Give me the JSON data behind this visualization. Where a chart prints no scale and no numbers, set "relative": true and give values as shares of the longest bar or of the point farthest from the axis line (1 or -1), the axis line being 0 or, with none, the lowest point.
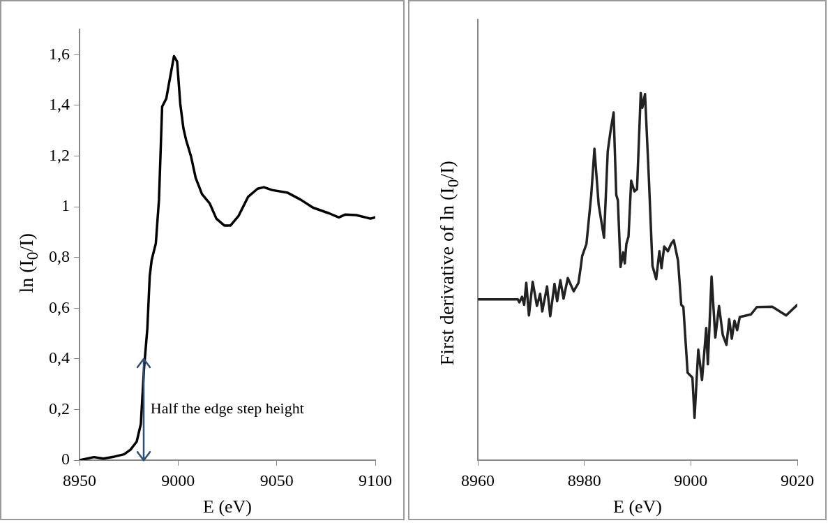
{
  "chart_data": [
    {
      "type": "line",
      "xlabel": "E (eV)",
      "ylabel": "ln (I$_{0}$/I)",
      "xlim": [
        8950,
        9100
      ],
      "xticks": [
        8950,
        9000,
        9050,
        9100
      ],
      "ylim": [
        0,
        1.7
      ],
      "yticks": [
        0,
        {
          "value": 0.2,
          "label": "0,2"
        },
        {
          "value": 0.4,
          "label": "0,4"
        },
        {
          "value": 0.6,
          "label": "0,6"
        },
        {
          "value": 0.8,
          "label": "0,8"
        },
        1,
        {
          "value": 1.2,
          "label": "1,2"
        },
        {
          "value": 1.4,
          "label": "1,4"
        },
        {
          "value": 1.6,
          "label": "1,6"
        }
      ],
      "annotations": [
        {
          "text": "Half the edge step height",
          "x": 8982.5,
          "y": 0.4
        }
      ],
      "series": [
        {
          "color": "#000000",
          "x": [
            8950,
            8957.3,
            8962.1,
            8967.7,
            8972.6,
            8975.8,
            8979,
            8981.1,
            8982.7,
            8984.4,
            8985.6,
            8986.6,
            8988.7,
            8990.3,
            8991.9,
            8994,
            8996,
            8997.9,
            8999.5,
            9001.1,
            9002.7,
            9004,
            9006.5,
            9008.9,
            9012.1,
            9016.1,
            9019.4,
            9023.4,
            9026.6,
            9030.6,
            9035.5,
            9040.3,
            9043.5,
            9047.6,
            9055.6,
            9062.1,
            9068.5,
            9076.6,
            9081.5,
            9084.7,
            9090.3,
            9097.6,
            9100
          ],
          "values": [
            0,
            0.012,
            0.006,
            0.014,
            0.023,
            0.041,
            0.073,
            0.143,
            0.36,
            0.52,
            0.726,
            0.79,
            0.855,
            1.028,
            1.395,
            1.427,
            1.513,
            1.594,
            1.573,
            1.406,
            1.309,
            1.265,
            1.2,
            1.114,
            1.05,
            1.012,
            0.953,
            0.926,
            0.926,
            0.963,
            1.039,
            1.071,
            1.077,
            1.066,
            1.055,
            1.028,
            0.996,
            0.974,
            0.958,
            0.969,
            0.967,
            0.953,
            0.958
          ]
        }
      ]
    },
    {
      "type": "line",
      "xlabel": "E (eV)",
      "ylabel": "First derivative of ln (I$_{0}$/I)",
      "relative": true,
      "xlim": [
        8960,
        9020
      ],
      "xticks": [
        8960,
        8980,
        9000,
        9020
      ],
      "series": [
        {
          "color": "#222222",
          "x": [
            8960.1,
            8967.5,
            8967.8,
            8968.3,
            8968.7,
            8969.1,
            8969.6,
            8970.3,
            8971.1,
            8971.7,
            8972.1,
            8973,
            8973.6,
            8974.4,
            8974.9,
            8975.5,
            8976.1,
            8976.9,
            8978,
            8978.9,
            8979.3,
            8979.6,
            8980.4,
            8981.3,
            8981.9,
            8982.7,
            8983.7,
            8984.4,
            8984.9,
            8985.5,
            8986,
            8986.3,
            8986.8,
            8987.3,
            8987.6,
            8987.9,
            8988.3,
            8988.8,
            8989.4,
            8989.9,
            8990.6,
            8990.9,
            8991.4,
            8992.1,
            8992.8,
            8993.5,
            8994.1,
            8994.5,
            8995,
            8995.7,
            8996.3,
            8996.8,
            8997.6,
            8998.2,
            8998.6,
            8999.4,
            9000.3,
            9000.7,
            9001.4,
            9002.1,
            9002.9,
            9003.2,
            9003.9,
            9004.6,
            9005.3,
            9006,
            9006.7,
            9007.2,
            9007.7,
            9008.2,
            9008.7,
            9009.2,
            9011.3,
            9012.4,
            9015.3,
            9017.9,
            9020
          ],
          "values": [
            0.438,
            0.438,
            0.43,
            0.445,
            0.423,
            0.483,
            0.394,
            0.486,
            0.42,
            0.453,
            0.405,
            0.473,
            0.392,
            0.48,
            0.433,
            0.49,
            0.44,
            0.496,
            0.46,
            0.483,
            0.523,
            0.556,
            0.589,
            0.722,
            0.848,
            0.695,
            0.606,
            0.841,
            0.894,
            0.947,
            0.722,
            0.708,
            0.526,
            0.566,
            0.536,
            0.589,
            0.609,
            0.761,
            0.732,
            0.738,
            1.0,
            0.96,
            0.997,
            0.775,
            0.529,
            0.493,
            0.569,
            0.523,
            0.582,
            0.569,
            0.589,
            0.599,
            0.543,
            0.423,
            0.417,
            0.238,
            0.225,
            0.115,
            0.301,
            0.218,
            0.36,
            0.261,
            0.5,
            0.334,
            0.42,
            0.341,
            0.314,
            0.384,
            0.331,
            0.38,
            0.354,
            0.39,
            0.397,
            0.417,
            0.418,
            0.394,
            0.423
          ]
        }
      ]
    }
  ]
}
